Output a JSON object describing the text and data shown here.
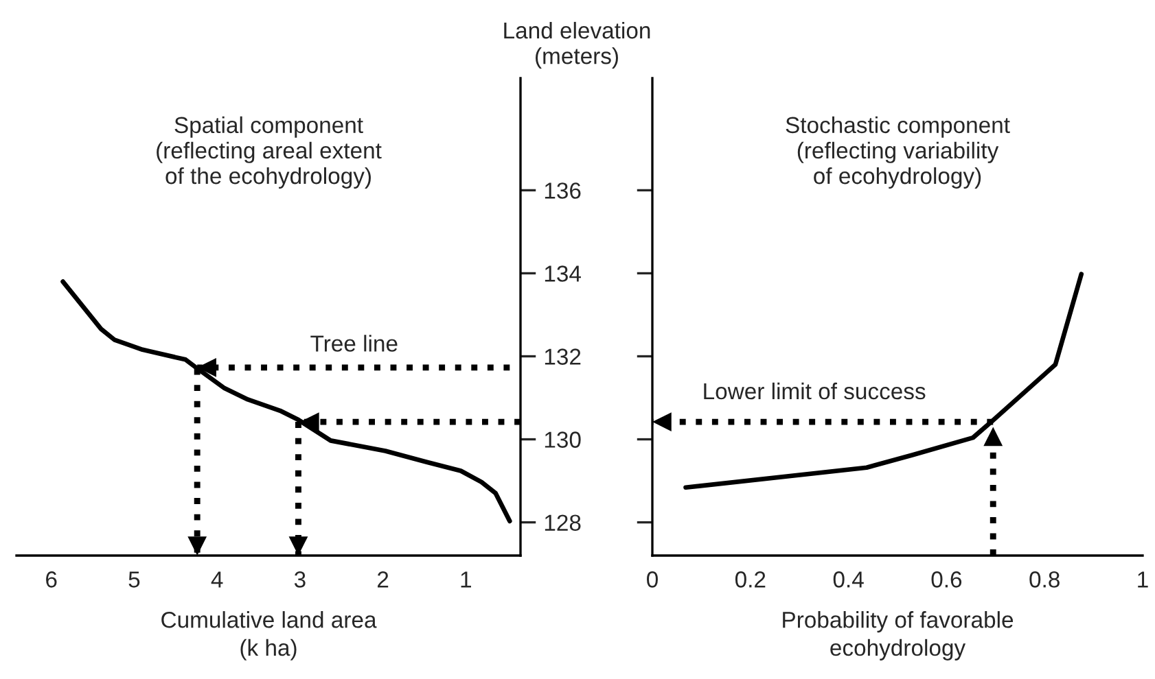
{
  "chart_data": [
    {
      "type": "line",
      "title": "Spatial component\n(reflecting areal extent\nof the ecohydrology)",
      "xlabel": "Cumulative land area\n(k ha)",
      "ylabel": "Land elevation\n(meters)",
      "xlim": [
        6.42,
        0.34
      ],
      "xticks": [
        6,
        5,
        4,
        3,
        2,
        1
      ],
      "ylim": [
        127.2,
        138.7
      ],
      "yticks": [
        128,
        130,
        132,
        134,
        136
      ],
      "annotations": [
        "Tree line"
      ],
      "series": [
        {
          "color": "#000000",
          "line_style": "solid",
          "x": [
            5.86,
            5.4,
            5.24,
            4.9,
            4.38,
            4.24,
            3.91,
            3.63,
            3.24,
            3.02,
            2.63,
            1.97,
            1.47,
            1.06,
            0.81,
            0.64,
            0.47
          ],
          "values": [
            133.8,
            132.66,
            132.4,
            132.16,
            131.92,
            131.71,
            131.23,
            130.96,
            130.69,
            130.47,
            129.97,
            129.72,
            129.45,
            129.24,
            128.97,
            128.7,
            128.03
          ]
        },
        {
          "color": "#000000",
          "line_style": "dotted",
          "x": [
            0.47,
            4.24
          ],
          "values": [
            131.73,
            131.73
          ]
        },
        {
          "color": "#000000",
          "line_style": "dotted",
          "x": [
            0.34,
            3.0
          ],
          "values": [
            130.42,
            130.42
          ]
        },
        {
          "color": "#000000",
          "line_style": "dotted",
          "x": [
            4.24,
            4.24
          ],
          "values": [
            131.7,
            127.2
          ]
        },
        {
          "color": "#000000",
          "line_style": "dotted",
          "x": [
            3.02,
            3.02
          ],
          "values": [
            130.42,
            127.2
          ]
        }
      ]
    },
    {
      "type": "line",
      "title": "Stochastic component\n(reflecting variability\nof ecohydrology)",
      "xlabel": "Probability of favorable\necohydrology",
      "xlim": [
        0,
        1
      ],
      "xticks": [
        0,
        0.2,
        0.4,
        0.6,
        0.8,
        1
      ],
      "ylim": [
        127.2,
        138.7
      ],
      "yticks": [
        128,
        130,
        132,
        134,
        136
      ],
      "tick_labels": "x",
      "annotations": [
        "Lower limit of success"
      ],
      "series": [
        {
          "color": "#000000",
          "line_style": "solid",
          "x": [
            0.068,
            0.437,
            0.53,
            0.654,
            0.695,
            0.822,
            0.875
          ],
          "values": [
            128.84,
            129.32,
            129.62,
            130.04,
            130.46,
            131.8,
            133.98
          ]
        },
        {
          "color": "#000000",
          "line_style": "dotted",
          "x": [
            0.695,
            0
          ],
          "values": [
            130.42,
            130.42
          ]
        },
        {
          "color": "#000000",
          "line_style": "dotted",
          "x": [
            0.695,
            0.695
          ],
          "values": [
            127.2,
            130.3
          ]
        }
      ]
    }
  ]
}
